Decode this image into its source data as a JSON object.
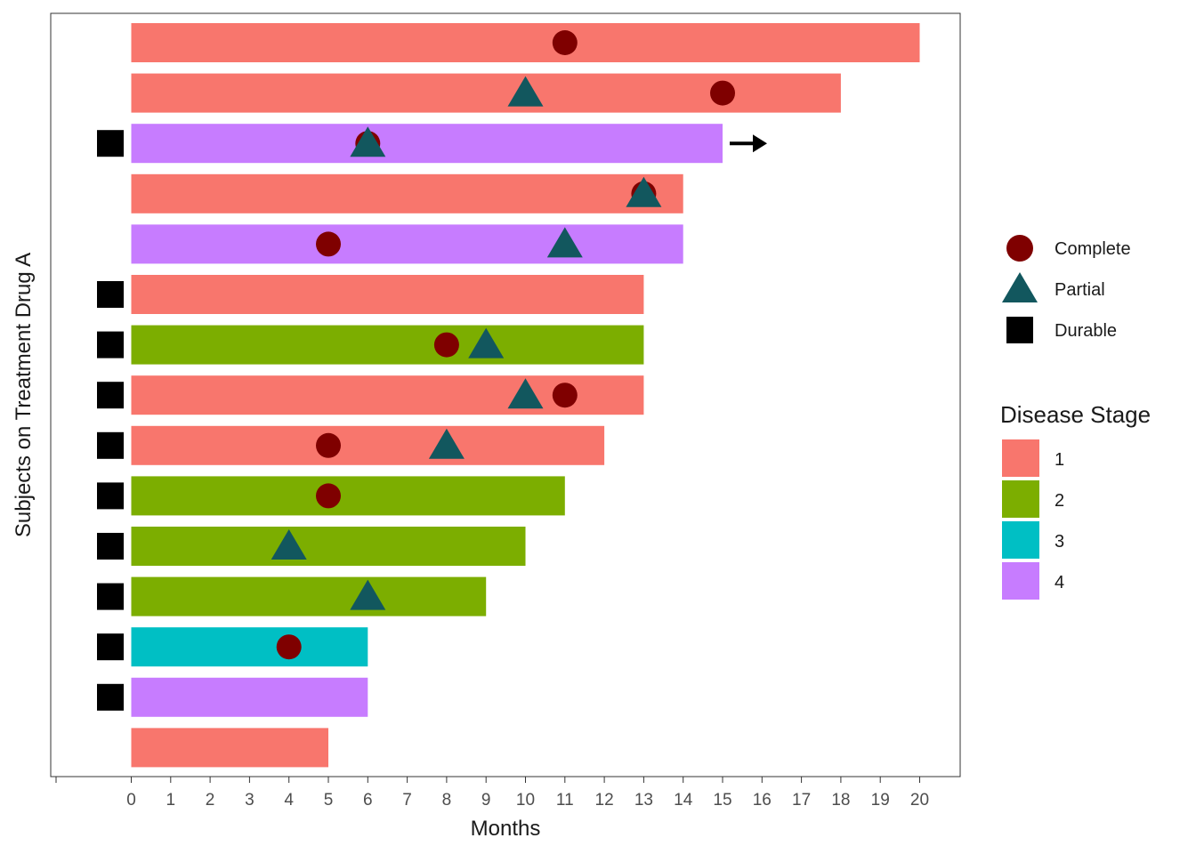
{
  "chart_data": {
    "type": "swimmer",
    "xlabel": "Months",
    "ylabel": "Subjects on Treatment Drug A",
    "x_ticks": [
      0,
      1,
      2,
      3,
      4,
      5,
      6,
      7,
      8,
      9,
      10,
      11,
      12,
      13,
      14,
      15,
      16,
      17,
      18,
      19,
      20
    ],
    "xlim": [
      -2,
      21
    ],
    "stage_colors": {
      "1": "#F8766D",
      "2": "#7CAE00",
      "3": "#00BFC4",
      "4": "#C77CFF"
    },
    "subjects": [
      {
        "duration": 20,
        "stage": "1",
        "durable": false,
        "continued": false,
        "complete": [
          11
        ],
        "partial": []
      },
      {
        "duration": 18,
        "stage": "1",
        "durable": false,
        "continued": false,
        "complete": [
          15
        ],
        "partial": [
          10
        ]
      },
      {
        "duration": 15,
        "stage": "4",
        "durable": true,
        "continued": true,
        "complete": [
          6
        ],
        "partial": [
          6
        ]
      },
      {
        "duration": 14,
        "stage": "1",
        "durable": false,
        "continued": false,
        "complete": [
          13
        ],
        "partial": [
          13
        ]
      },
      {
        "duration": 14,
        "stage": "4",
        "durable": false,
        "continued": false,
        "complete": [
          5
        ],
        "partial": [
          11
        ]
      },
      {
        "duration": 13,
        "stage": "1",
        "durable": true,
        "continued": false,
        "complete": [],
        "partial": []
      },
      {
        "duration": 13,
        "stage": "2",
        "durable": true,
        "continued": false,
        "complete": [
          8
        ],
        "partial": [
          9
        ]
      },
      {
        "duration": 13,
        "stage": "1",
        "durable": true,
        "continued": false,
        "complete": [
          11
        ],
        "partial": [
          10
        ]
      },
      {
        "duration": 12,
        "stage": "1",
        "durable": true,
        "continued": false,
        "complete": [
          5
        ],
        "partial": [
          8
        ]
      },
      {
        "duration": 11,
        "stage": "2",
        "durable": true,
        "continued": false,
        "complete": [
          5
        ],
        "partial": []
      },
      {
        "duration": 10,
        "stage": "2",
        "durable": true,
        "continued": false,
        "complete": [],
        "partial": [
          4
        ]
      },
      {
        "duration": 9,
        "stage": "2",
        "durable": true,
        "continued": false,
        "complete": [],
        "partial": [
          6
        ]
      },
      {
        "duration": 6,
        "stage": "3",
        "durable": true,
        "continued": false,
        "complete": [
          4
        ],
        "partial": []
      },
      {
        "duration": 6,
        "stage": "4",
        "durable": true,
        "continued": false,
        "complete": [],
        "partial": []
      },
      {
        "duration": 5,
        "stage": "1",
        "durable": false,
        "continued": false,
        "complete": [],
        "partial": []
      }
    ],
    "marker_legend": [
      {
        "shape": "circle",
        "label": "Complete",
        "color": "#7F0000"
      },
      {
        "shape": "triangle",
        "label": "Partial",
        "color": "#12575E"
      },
      {
        "shape": "square",
        "label": "Durable",
        "color": "#000000"
      }
    ],
    "stage_legend": {
      "title": "Disease Stage",
      "items": [
        {
          "label": "1",
          "color": "#F8766D"
        },
        {
          "label": "2",
          "color": "#7CAE00"
        },
        {
          "label": "3",
          "color": "#00BFC4"
        },
        {
          "label": "4",
          "color": "#C77CFF"
        }
      ]
    }
  }
}
